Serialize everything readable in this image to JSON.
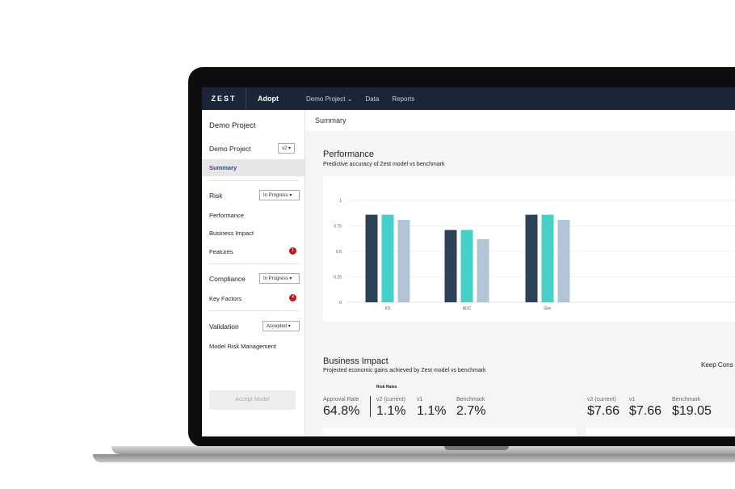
{
  "topbar": {
    "logo": "ZEST",
    "app": "Adopt",
    "nav": [
      "Demo Project",
      "Data",
      "Reports"
    ]
  },
  "sidebar": {
    "title": "Demo Project",
    "project": "Demo Project",
    "version": "v2",
    "summary": "Summary",
    "risk": {
      "label": "Risk",
      "status": "In Progress",
      "items": [
        "Performance",
        "Business Impact",
        "Features"
      ],
      "features_badge": "1"
    },
    "compliance": {
      "label": "Compliance",
      "status": "In Progress",
      "item": "Key Factors",
      "badge": "4"
    },
    "validation": {
      "label": "Validation",
      "status": "Accepted",
      "item": "Model Risk Management"
    },
    "accept": "Accept Model"
  },
  "main": {
    "breadcrumb": "Summary",
    "performance": {
      "title": "Performance",
      "subtitle": "Predictive accuracy of Zest model vs benchmark"
    },
    "business": {
      "title": "Business Impact",
      "subtitle": "Projected economic gains achieved by Zest model vs benchmark",
      "keep": "Keep Cons",
      "risk_rates": "Risk Rates",
      "approval_label": "Approval Rate",
      "approval": "64.8%",
      "rates": [
        {
          "label": "v2 (current)",
          "value": "1.1%"
        },
        {
          "label": "v1",
          "value": "1.1%"
        },
        {
          "label": "Benchmark",
          "value": "2.7%"
        }
      ],
      "money": [
        {
          "label": "v2 (current)",
          "value": "$7.66"
        },
        {
          "label": "v1",
          "value": "$7.66"
        },
        {
          "label": "Benchmark",
          "value": "$19.05"
        }
      ]
    }
  },
  "chart_data": {
    "type": "bar",
    "categories": [
      "KS",
      "AUC",
      "Gini"
    ],
    "ylim": [
      0,
      1
    ],
    "yticks": [
      "0",
      "0.25",
      "0.5",
      "0.75",
      "1"
    ],
    "grid": true,
    "series": [
      {
        "color": "#2e4257",
        "values": [
          0.86,
          0.71,
          0.86
        ]
      },
      {
        "color": "#45d0c8",
        "values": [
          0.86,
          0.71,
          0.86
        ]
      },
      {
        "color": "#b3c4d6",
        "values": [
          0.81,
          0.62,
          0.81
        ]
      }
    ]
  }
}
